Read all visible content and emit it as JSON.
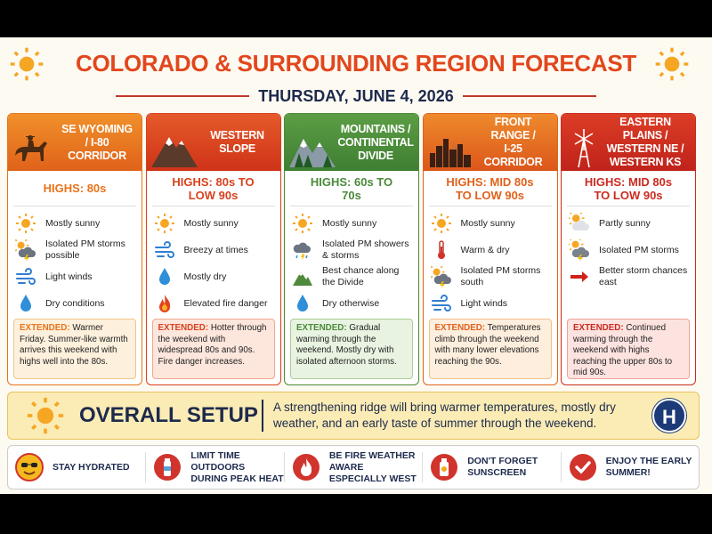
{
  "header": {
    "title": "COLORADO & SURROUNDING REGION FORECAST",
    "date": "THURSDAY, JUNE 4, 2026"
  },
  "regions": [
    {
      "title": [
        "SE WYOMING",
        "/ I-80 CORRIDOR"
      ],
      "highs": "HIGHS: 80s",
      "items": [
        "Mostly sunny",
        "Isolated PM storms possible",
        "Light winds",
        "Dry conditions"
      ],
      "extended_label": "EXTENDED:",
      "extended": "Warmer Friday. Summer-like warmth arrives this weekend with highs well into the 80s."
    },
    {
      "title": [
        "WESTERN",
        "SLOPE"
      ],
      "highs": "HIGHS: 80s TO LOW 90s",
      "items": [
        "Mostly sunny",
        "Breezy at times",
        "Mostly dry",
        "Elevated fire danger"
      ],
      "extended_label": "EXTENDED:",
      "extended": "Hotter through the weekend with widespread 80s and 90s. Fire danger increases."
    },
    {
      "title": [
        "MOUNTAINS /",
        "CONTINENTAL",
        "DIVIDE"
      ],
      "highs": "HIGHS: 60s TO 70s",
      "items": [
        "Mostly sunny",
        "Isolated PM showers & storms",
        "Best chance along the Divide",
        "Dry otherwise"
      ],
      "extended_label": "EXTENDED:",
      "extended": "Gradual warming through the weekend. Mostly dry with isolated afternoon storms."
    },
    {
      "title": [
        "FRONT RANGE /",
        "I-25 CORRIDOR"
      ],
      "highs": "HIGHS: MID 80s TO LOW 90s",
      "items": [
        "Mostly sunny",
        "Warm & dry",
        "Isolated PM storms south",
        "Light winds"
      ],
      "extended_label": "EXTENDED:",
      "extended": "Temperatures climb through the weekend with many lower elevations reaching the 90s."
    },
    {
      "title": [
        "EASTERN PLAINS /",
        "WESTERN NE /",
        "WESTERN KS"
      ],
      "highs": "HIGHS: MID 80s TO LOW 90s",
      "items": [
        "Partly sunny",
        "Isolated PM storms",
        "Better storm chances east"
      ],
      "extended_label": "EXTENDED:",
      "extended": "Continued warming through the weekend with highs reaching the upper 80s to mid 90s."
    }
  ],
  "setup": {
    "title": "OVERALL SETUP",
    "text": "A strengthening ridge will bring warmer temperatures, mostly dry weather, and an early taste of summer through the weekend.",
    "badge": "H"
  },
  "tips": [
    "STAY HYDRATED",
    "LIMIT TIME OUTDOORS DURING PEAK HEAT",
    "BE FIRE WEATHER AWARE ESPECIALLY WEST",
    "DON'T FORGET SUNSCREEN",
    "ENJOY THE EARLY SUMMER!"
  ]
}
